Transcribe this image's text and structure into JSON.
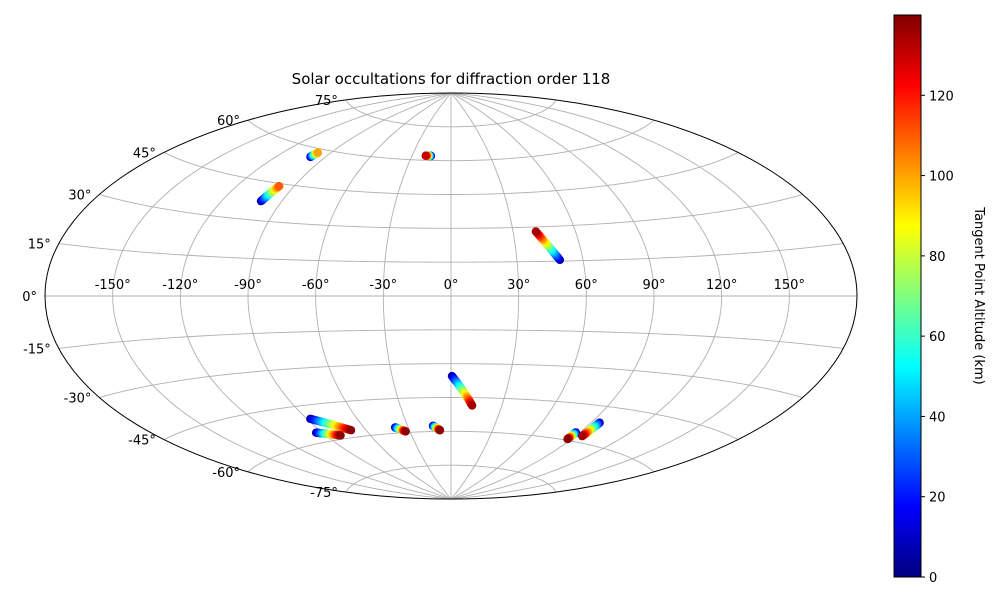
{
  "chart_data": {
    "type": "scatter",
    "title": "Solar occultations for diffraction order 118",
    "projection": "aitoff",
    "x_tick_labels": [
      "-150°",
      "-120°",
      "-90°",
      "-60°",
      "-30°",
      "0°",
      "30°",
      "60°",
      "90°",
      "120°",
      "150°"
    ],
    "x_ticks": [
      -150,
      -120,
      -90,
      -60,
      -30,
      0,
      30,
      60,
      90,
      120,
      150
    ],
    "y_tick_labels": [
      "-75°",
      "-60°",
      "-45°",
      "-30°",
      "-15°",
      "0°",
      "15°",
      "30°",
      "45°",
      "60°",
      "75°"
    ],
    "y_ticks": [
      -75,
      -60,
      -45,
      -30,
      -15,
      0,
      15,
      30,
      45,
      60,
      75
    ],
    "grid": true,
    "colormap": "jet",
    "colorbar": {
      "label": "Tangent Point Altitude (km)",
      "range": [
        0,
        140
      ],
      "tick_values": [
        0,
        20,
        40,
        60,
        80,
        100,
        120
      ],
      "tick_labels": [
        "0",
        "20",
        "40",
        "60",
        "80",
        "100",
        "120"
      ]
    },
    "tracks": [
      {
        "lon_start": -99.5,
        "lat_start": 56.5,
        "lon_end": -98.5,
        "lat_end": 58.5,
        "alt_start": 5,
        "alt_end": 100
      },
      {
        "lon_start": -100.5,
        "lat_start": 37.5,
        "lon_end": -98.0,
        "lat_end": 44.0,
        "alt_start": 5,
        "alt_end": 110
      },
      {
        "lon_start": -15.5,
        "lat_start": 62.0,
        "lon_end": -19.5,
        "lat_end": 62.0,
        "alt_start": 5,
        "alt_end": 130
      },
      {
        "lon_start": 49.5,
        "lat_start": 15.5,
        "lon_end": 41.0,
        "lat_end": 28.0,
        "alt_start": 5,
        "alt_end": 135
      },
      {
        "lon_start": 0.5,
        "lat_start": -35.5,
        "lon_end": 12.5,
        "lat_end": -48.5,
        "alt_start": 5,
        "alt_end": 135
      },
      {
        "lon_start": -88.0,
        "lat_start": -50.5,
        "lon_end": -70.0,
        "lat_end": -57.0,
        "alt_start": 5,
        "alt_end": 138
      },
      {
        "lon_start": -94.0,
        "lat_start": -56.0,
        "lon_end": -80.5,
        "lat_end": -58.5,
        "alt_start": 5,
        "alt_end": 138
      },
      {
        "lon_start": -39.0,
        "lat_start": -57.5,
        "lon_end": -33.0,
        "lat_end": -59.5,
        "alt_start": 5,
        "alt_end": 138
      },
      {
        "lon_start": -12.5,
        "lat_start": -57.5,
        "lon_end": -8.0,
        "lat_end": -59.5,
        "alt_start": 5,
        "alt_end": 138
      },
      {
        "lon_start": 87.5,
        "lat_start": -56.5,
        "lon_end": 87.5,
        "lat_end": -59.5,
        "alt_start": 5,
        "alt_end": 138
      },
      {
        "lon_start": 95.0,
        "lat_start": -51.5,
        "lon_end": 94.5,
        "lat_end": -57.5,
        "alt_start": 10,
        "alt_end": 135
      }
    ]
  }
}
